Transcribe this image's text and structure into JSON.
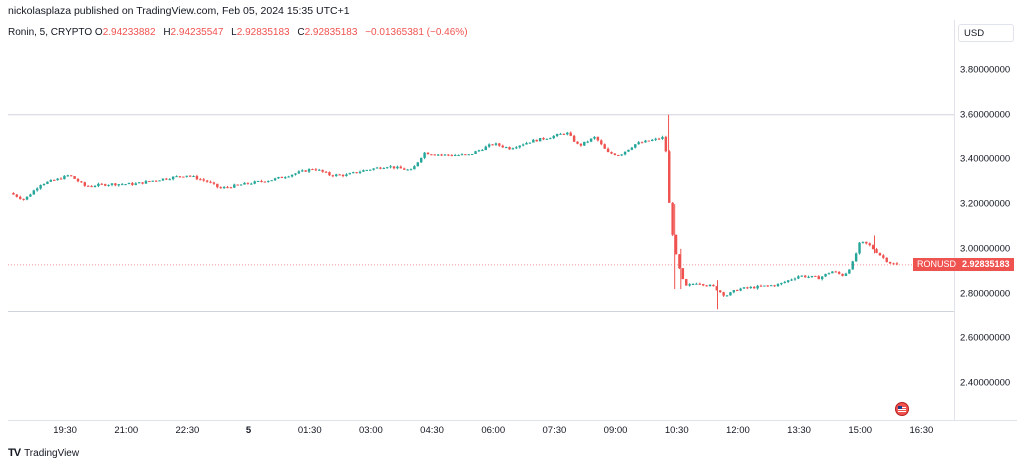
{
  "header": {
    "publisher_line": "nickolasplaza published on TradingView.com, Feb 05, 2024 15:35 UTC+1"
  },
  "legend": {
    "symbol": "Ronin, 5, CRYPTO",
    "open_label": "O",
    "open": "2.94233882",
    "high_label": "H",
    "high": "2.94235547",
    "low_label": "L",
    "low": "2.92835183",
    "close_label": "C",
    "close": "2.92835183",
    "change": "−0.01365381 (−0.46%)"
  },
  "price_axis": {
    "currency": "USD"
  },
  "last_price_tag": {
    "symbol": "RONUSD",
    "price": "2.92835183"
  },
  "footer": {
    "logo_text": "TradingView"
  },
  "colors": {
    "up": "#26a69a",
    "down": "#ef5350",
    "grid": "#e0e3eb"
  },
  "icons": {
    "flag": "us-flag-icon",
    "logo": "tradingview-logo-icon"
  },
  "chart_data": {
    "type": "candlestick",
    "ylim": [
      2.2,
      3.88
    ],
    "y_ticks": [
      "3.80000000",
      "3.60000000",
      "3.40000000",
      "3.20000000",
      "3.00000000",
      "2.80000000",
      "2.60000000",
      "2.40000000"
    ],
    "y_tick_values": [
      3.8,
      3.6,
      3.4,
      3.2,
      3.0,
      2.8,
      2.6,
      2.4
    ],
    "x_ticks": [
      {
        "label": "19:30",
        "hour": 19.5
      },
      {
        "label": "21:00",
        "hour": 21
      },
      {
        "label": "22:30",
        "hour": 22.5
      },
      {
        "label": "5",
        "hour": 24,
        "bold": true
      },
      {
        "label": "01:30",
        "hour": 25.5
      },
      {
        "label": "03:00",
        "hour": 27
      },
      {
        "label": "04:30",
        "hour": 28.5
      },
      {
        "label": "06:00",
        "hour": 30
      },
      {
        "label": "07:30",
        "hour": 31.5
      },
      {
        "label": "09:00",
        "hour": 33
      },
      {
        "label": "10:30",
        "hour": 34.5
      },
      {
        "label": "12:00",
        "hour": 36
      },
      {
        "label": "13:30",
        "hour": 37.5
      },
      {
        "label": "15:00",
        "hour": 39
      },
      {
        "label": "16:30",
        "hour": 40.5
      }
    ],
    "x_range_hours": [
      18.1,
      41.3
    ],
    "interval_minutes": 5,
    "horizontal_lines": [
      3.6,
      2.72
    ],
    "last_price": 2.92835183,
    "anchors": [
      [
        18.15,
        3.25
      ],
      [
        18.5,
        3.22
      ],
      [
        18.9,
        3.29
      ],
      [
        19.3,
        3.31
      ],
      [
        19.6,
        3.33
      ],
      [
        20.0,
        3.28
      ],
      [
        20.6,
        3.29
      ],
      [
        21.2,
        3.29
      ],
      [
        21.8,
        3.31
      ],
      [
        22.5,
        3.33
      ],
      [
        23.0,
        3.3
      ],
      [
        23.3,
        3.27
      ],
      [
        23.9,
        3.29
      ],
      [
        24.6,
        3.31
      ],
      [
        25.2,
        3.34
      ],
      [
        25.6,
        3.36
      ],
      [
        26.0,
        3.33
      ],
      [
        26.4,
        3.33
      ],
      [
        26.8,
        3.35
      ],
      [
        27.4,
        3.37
      ],
      [
        28.0,
        3.35
      ],
      [
        28.3,
        3.43
      ],
      [
        28.8,
        3.42
      ],
      [
        29.4,
        3.42
      ],
      [
        30.0,
        3.47
      ],
      [
        30.4,
        3.45
      ],
      [
        30.9,
        3.48
      ],
      [
        31.4,
        3.5
      ],
      [
        31.8,
        3.52
      ],
      [
        32.1,
        3.46
      ],
      [
        32.5,
        3.5
      ],
      [
        32.8,
        3.43
      ],
      [
        33.1,
        3.42
      ],
      [
        33.5,
        3.47
      ],
      [
        34.0,
        3.49
      ],
      [
        34.2,
        3.5
      ],
      [
        34.28,
        3.35
      ],
      [
        34.33,
        3.15
      ],
      [
        34.5,
        2.95
      ],
      [
        34.7,
        2.83
      ],
      [
        35.0,
        2.85
      ],
      [
        35.4,
        2.83
      ],
      [
        35.7,
        2.79
      ],
      [
        36.0,
        2.82
      ],
      [
        36.5,
        2.83
      ],
      [
        37.0,
        2.84
      ],
      [
        37.5,
        2.88
      ],
      [
        38.0,
        2.87
      ],
      [
        38.3,
        2.9
      ],
      [
        38.6,
        2.88
      ],
      [
        38.8,
        2.93
      ],
      [
        39.0,
        3.03
      ],
      [
        39.2,
        3.02
      ],
      [
        39.5,
        2.97
      ],
      [
        39.7,
        2.94
      ],
      [
        39.9,
        2.928
      ]
    ],
    "spikes": [
      {
        "hour": 34.3,
        "high": 3.6,
        "low": 3.25
      },
      {
        "hour": 34.45,
        "high": 3.2,
        "low": 2.82
      },
      {
        "hour": 34.6,
        "high": 3.0,
        "low": 2.82
      },
      {
        "hour": 35.5,
        "high": 2.86,
        "low": 2.73
      },
      {
        "hour": 39.35,
        "high": 3.06,
        "low": 2.98
      }
    ]
  }
}
